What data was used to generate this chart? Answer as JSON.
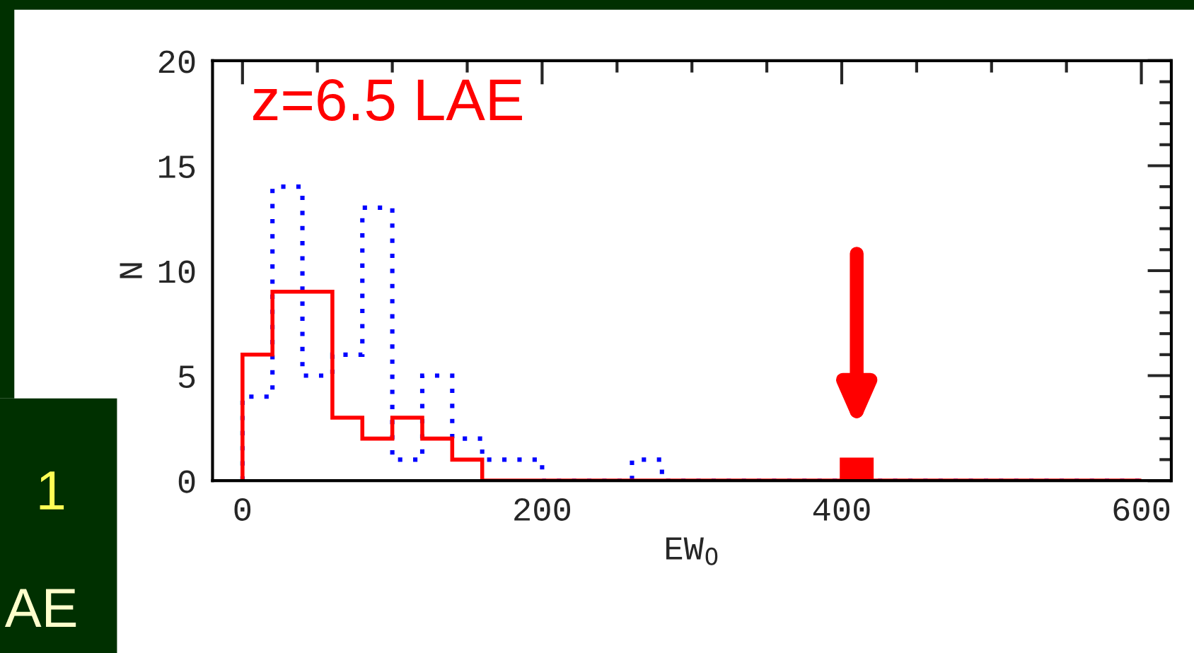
{
  "chart_data": {
    "type": "histogram",
    "title": "z=6.5 LAE",
    "xlabel": "EW$_{0}$",
    "ylabel": "N",
    "bins": [
      0,
      20,
      40,
      60,
      80,
      100,
      120,
      140,
      160,
      180,
      200,
      220,
      240,
      260,
      280,
      300,
      320,
      340,
      360,
      380,
      400,
      420,
      440,
      460,
      480,
      500,
      520,
      540,
      560,
      580,
      600
    ],
    "series": [
      {
        "color": "#0000ff",
        "line_style": "dotted",
        "values": [
          4,
          14,
          5,
          6,
          13,
          1,
          5,
          2,
          1,
          1,
          0,
          0,
          0,
          1,
          0,
          0,
          0,
          0,
          0,
          0,
          0,
          0,
          0,
          0,
          0,
          0,
          0,
          0,
          0,
          0
        ]
      },
      {
        "color": "#ff0000",
        "line_style": "solid",
        "values": [
          6,
          9,
          9,
          3,
          2,
          3,
          2,
          1,
          0,
          0,
          0,
          0,
          0,
          0,
          0,
          0,
          0,
          0,
          0,
          0,
          1,
          0,
          0,
          0,
          0,
          0,
          0,
          0,
          0,
          0
        ]
      }
    ],
    "xlim": [
      -20,
      620
    ],
    "xticks": [
      0,
      200,
      400,
      600
    ],
    "ylim": [
      0,
      20
    ],
    "yticks": [
      0,
      5,
      10,
      15,
      20
    ],
    "grid": false,
    "legend": false,
    "annotations": [
      "1",
      "AE"
    ]
  }
}
